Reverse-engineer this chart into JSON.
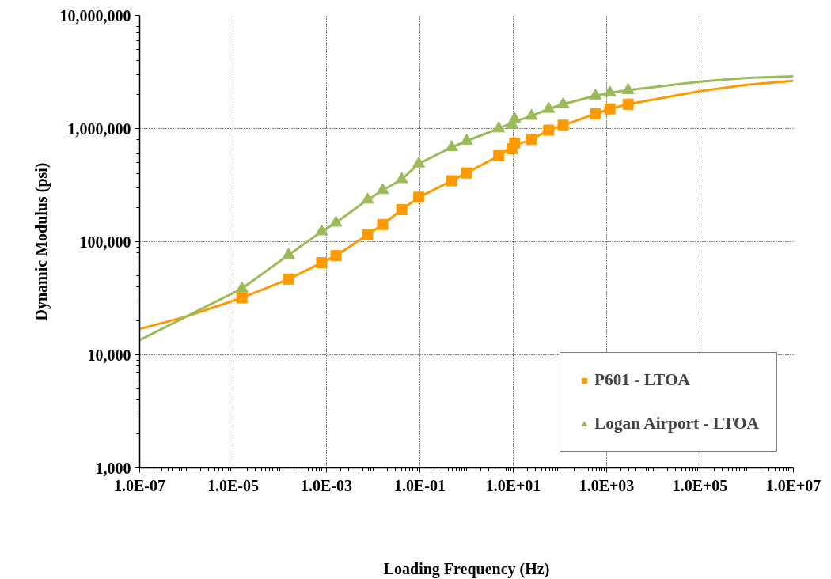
{
  "chart_data": {
    "type": "scatter",
    "xlabel": "Loading Frequency (Hz)",
    "ylabel": "Dynamic Modulus (psi)",
    "log": "xy",
    "grid": true,
    "legend": "bottom right",
    "xlim": [
      1e-07,
      10000000.0
    ],
    "ylim": [
      1000,
      10000000
    ],
    "xticks": [
      {
        "value": 1e-07,
        "label": "1.0E-07"
      },
      {
        "value": 1e-05,
        "label": "1.0E-05"
      },
      {
        "value": 0.001,
        "label": "1.0E-03"
      },
      {
        "value": 0.1,
        "label": "1.0E-01"
      },
      {
        "value": 10,
        "label": "1.0E+01"
      },
      {
        "value": 1000,
        "label": "1.0E+03"
      },
      {
        "value": 100000,
        "label": "1.0E+05"
      },
      {
        "value": 10000000,
        "label": "1.0E+07"
      }
    ],
    "yticks": [
      {
        "value": 1000,
        "label": "1,000"
      },
      {
        "value": 10000,
        "label": "10,000"
      },
      {
        "value": 100000,
        "label": "100,000"
      },
      {
        "value": 1000000,
        "label": "1,000,000"
      },
      {
        "value": 10000000,
        "label": "10,000,000"
      }
    ],
    "series": [
      {
        "name": "P601 - LTOA",
        "color": "#ff9900",
        "marker": "square",
        "x": [
          1.55e-05,
          0.000155,
          0.00079,
          0.0016,
          0.0076,
          0.016,
          0.041,
          0.095,
          0.48,
          1.0,
          4.9,
          9.5,
          10.7,
          24.5,
          57.5,
          117,
          575,
          1175,
          2880
        ],
        "values": [
          31900,
          46700,
          65200,
          75200,
          115000,
          142000,
          192000,
          247000,
          345000,
          405000,
          574000,
          662000,
          740000,
          800000,
          968000,
          1070000,
          1350000,
          1490000,
          1640000
        ]
      },
      {
        "name": "Logan Airport - LTOA",
        "color": "#9bbb59",
        "marker": "triangle",
        "x": [
          1.55e-05,
          0.000155,
          0.00079,
          0.0016,
          0.0076,
          0.016,
          0.041,
          0.095,
          0.48,
          1.0,
          4.9,
          9.5,
          10.7,
          24.5,
          57.5,
          117,
          575,
          1175,
          2880
        ],
        "values": [
          38500,
          76400,
          123000,
          147000,
          235000,
          285000,
          356000,
          490000,
          682000,
          776000,
          1000000,
          1080000,
          1210000,
          1290000,
          1490000,
          1640000,
          1950000,
          2070000,
          2180000
        ]
      },
      {
        "type": "line",
        "color": "#ff9900",
        "x": [
          1e-07,
          1e-06,
          1.55e-05,
          0.000155,
          0.00079,
          0.0016,
          0.0076,
          0.016,
          0.041,
          0.095,
          0.48,
          1.0,
          4.9,
          10,
          24.5,
          57.5,
          117,
          575,
          1175,
          2880,
          100000,
          1000000,
          10000000
        ],
        "values": [
          16900,
          21800,
          31900,
          46700,
          65200,
          75200,
          115000,
          142000,
          192000,
          247000,
          345000,
          405000,
          574000,
          700000,
          800000,
          968000,
          1070000,
          1350000,
          1490000,
          1640000,
          2140000,
          2430000,
          2640000
        ]
      },
      {
        "type": "line",
        "color": "#9bbb59",
        "x": [
          1e-07,
          1e-06,
          1.55e-05,
          0.000155,
          0.00079,
          0.0016,
          0.0076,
          0.016,
          0.041,
          0.095,
          0.48,
          1.0,
          4.9,
          10,
          24.5,
          57.5,
          117,
          575,
          1175,
          2880,
          100000,
          1000000,
          10000000
        ],
        "values": [
          13500,
          21800,
          38500,
          76400,
          123000,
          147000,
          235000,
          285000,
          356000,
          490000,
          682000,
          776000,
          1000000,
          1140000,
          1290000,
          1490000,
          1640000,
          1950000,
          2070000,
          2180000,
          2600000,
          2800000,
          2900000
        ]
      }
    ]
  }
}
